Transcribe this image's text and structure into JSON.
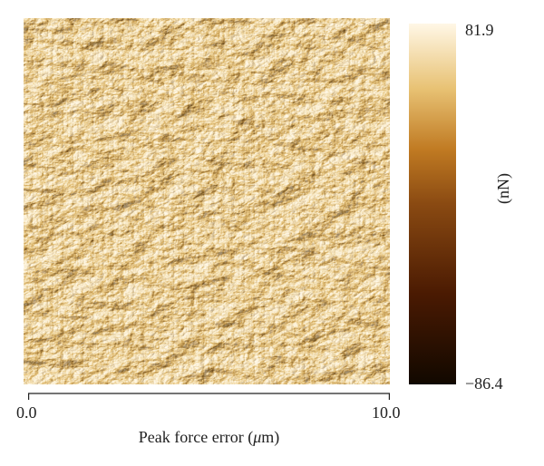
{
  "figure": {
    "colorbar": {
      "max_label": "81.9",
      "min_label": "−86.4",
      "unit_label": "(nN)",
      "colors": [
        "#110800",
        "#4a1a02",
        "#8a4a12",
        "#c07a22",
        "#e8c274",
        "#fff7e6"
      ]
    },
    "x_axis": {
      "start_label": "0.0",
      "end_label": "10.0",
      "title_prefix": "Peak force error (",
      "title_unit_symbol": "μ",
      "title_suffix": "m)"
    },
    "image_palette": {
      "dark": "#2a1405",
      "mid": "#9a6420",
      "light": "#f2e6c6"
    }
  }
}
